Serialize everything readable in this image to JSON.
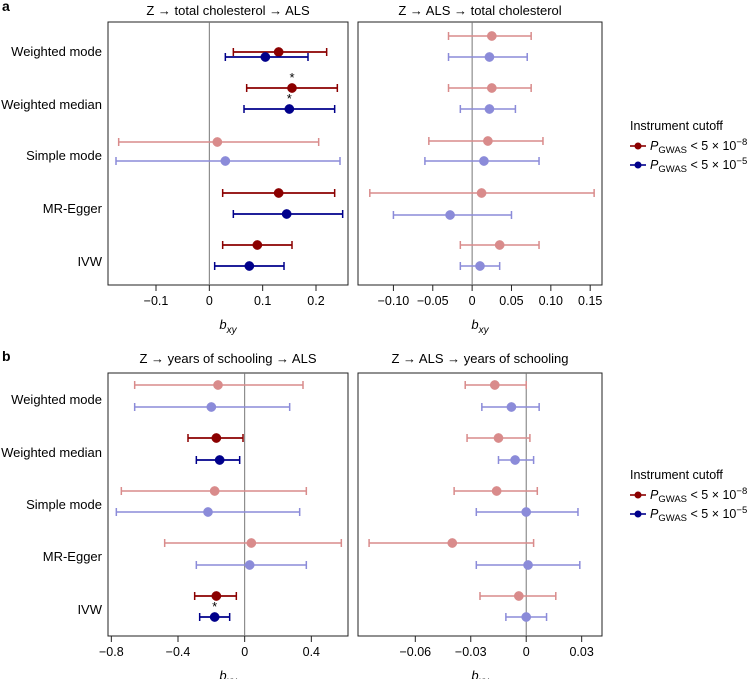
{
  "panel_labels": [
    "a",
    "b"
  ],
  "methods": [
    "Weighted mode",
    "Weighted median",
    "Simple mode",
    "MR-Egger",
    "IVW"
  ],
  "legend": {
    "title": "Instrument cutoff",
    "items": [
      {
        "label": "P_GWAS < 5 × 10^-8",
        "color": "#8b0000"
      },
      {
        "label": "P_GWAS < 5 × 10^-5",
        "color": "#00008b"
      }
    ]
  },
  "colors": {
    "red": "#8b0000",
    "blue": "#00008b",
    "red_faded": "#d98b8b",
    "blue_faded": "#8b8bd9"
  },
  "chart_data": [
    {
      "type": "forest",
      "panel": "a",
      "title": "Z → total cholesterol → ALS",
      "xlabel": "b_xy",
      "xlim": [
        -0.19,
        0.26
      ],
      "xticks": [
        -0.1,
        0,
        0.1,
        0.2
      ],
      "xtick_labels": [
        "−0.1",
        "0",
        "0.1",
        "0.2"
      ],
      "series": [
        {
          "name": "P_GWAS < 5 × 10^-8",
          "estimates": [
            0.13,
            0.155,
            0.015,
            0.13,
            0.09
          ],
          "ci_low": [
            0.045,
            0.07,
            -0.17,
            0.025,
            0.025
          ],
          "ci_high": [
            0.22,
            0.24,
            0.205,
            0.235,
            0.155
          ],
          "significant": [
            true,
            true,
            false,
            true,
            true
          ],
          "star": [
            false,
            true,
            false,
            false,
            false
          ]
        },
        {
          "name": "P_GWAS < 5 × 10^-5",
          "estimates": [
            0.105,
            0.15,
            0.03,
            0.145,
            0.075
          ],
          "ci_low": [
            0.03,
            0.065,
            -0.175,
            0.045,
            0.01
          ],
          "ci_high": [
            0.185,
            0.235,
            0.245,
            0.25,
            0.14
          ],
          "significant": [
            true,
            true,
            false,
            true,
            true
          ],
          "star": [
            false,
            true,
            false,
            false,
            false
          ]
        }
      ]
    },
    {
      "type": "forest",
      "panel": "a",
      "title": "Z → ALS → total cholesterol",
      "xlabel": "b_xy",
      "xlim": [
        -0.145,
        0.165
      ],
      "xticks": [
        -0.1,
        -0.05,
        0,
        0.05,
        0.1,
        0.15
      ],
      "xtick_labels": [
        "−0.10",
        "−0.05",
        "0",
        "0.05",
        "0.10",
        "0.15"
      ],
      "series": [
        {
          "name": "P_GWAS < 5 × 10^-8",
          "estimates": [
            0.025,
            0.025,
            0.02,
            0.012,
            0.035
          ],
          "ci_low": [
            -0.03,
            -0.03,
            -0.055,
            -0.13,
            -0.015
          ],
          "ci_high": [
            0.075,
            0.075,
            0.09,
            0.155,
            0.085
          ],
          "significant": [
            false,
            false,
            false,
            false,
            false
          ],
          "star": [
            false,
            false,
            false,
            false,
            false
          ]
        },
        {
          "name": "P_GWAS < 5 × 10^-5",
          "estimates": [
            0.022,
            0.022,
            0.015,
            -0.028,
            0.01
          ],
          "ci_low": [
            -0.03,
            -0.015,
            -0.06,
            -0.1,
            -0.015
          ],
          "ci_high": [
            0.07,
            0.055,
            0.085,
            0.05,
            0.035
          ],
          "significant": [
            false,
            false,
            false,
            false,
            false
          ],
          "star": [
            false,
            false,
            false,
            false,
            false
          ]
        }
      ]
    },
    {
      "type": "forest",
      "panel": "b",
      "title": "Z → years of schooling → ALS",
      "xlabel": "b_xy",
      "xlim": [
        -0.82,
        0.62
      ],
      "xticks": [
        -0.8,
        -0.4,
        0,
        0.4
      ],
      "xtick_labels": [
        "−0.8",
        "−0.4",
        "0",
        "0.4"
      ],
      "series": [
        {
          "name": "P_GWAS < 5 × 10^-8",
          "estimates": [
            -0.16,
            -0.17,
            -0.18,
            0.04,
            -0.17
          ],
          "ci_low": [
            -0.66,
            -0.34,
            -0.74,
            -0.48,
            -0.3
          ],
          "ci_high": [
            0.35,
            -0.01,
            0.37,
            0.58,
            -0.05
          ],
          "significant": [
            false,
            true,
            false,
            false,
            true
          ],
          "star": [
            false,
            false,
            false,
            false,
            false
          ]
        },
        {
          "name": "P_GWAS < 5 × 10^-5",
          "estimates": [
            -0.2,
            -0.15,
            -0.22,
            0.03,
            -0.18
          ],
          "ci_low": [
            -0.66,
            -0.29,
            -0.77,
            -0.29,
            -0.27
          ],
          "ci_high": [
            0.27,
            -0.03,
            0.33,
            0.37,
            -0.09
          ],
          "significant": [
            false,
            true,
            false,
            false,
            true
          ],
          "star": [
            false,
            false,
            false,
            false,
            true
          ]
        }
      ]
    },
    {
      "type": "forest",
      "panel": "b",
      "title": "Z → ALS → years of schooling",
      "xlabel": "b_xy",
      "xlim": [
        -0.091,
        0.041
      ],
      "xticks": [
        -0.06,
        -0.03,
        0,
        0.03
      ],
      "xtick_labels": [
        "−0.06",
        "−0.03",
        "0",
        "0.03"
      ],
      "series": [
        {
          "name": "P_GWAS < 5 × 10^-8",
          "estimates": [
            -0.017,
            -0.015,
            -0.016,
            -0.04,
            -0.004
          ],
          "ci_low": [
            -0.033,
            -0.032,
            -0.039,
            -0.085,
            -0.025
          ],
          "ci_high": [
            0.0,
            0.002,
            0.006,
            0.004,
            0.016
          ],
          "significant": [
            false,
            false,
            false,
            false,
            false
          ],
          "star": [
            false,
            false,
            false,
            false,
            false
          ]
        },
        {
          "name": "P_GWAS < 5 × 10^-5",
          "estimates": [
            -0.008,
            -0.006,
            0.0,
            0.001,
            0.0
          ],
          "ci_low": [
            -0.024,
            -0.015,
            -0.027,
            -0.027,
            -0.011
          ],
          "ci_high": [
            0.007,
            0.004,
            0.028,
            0.029,
            0.011
          ],
          "significant": [
            false,
            false,
            false,
            false,
            false
          ],
          "star": [
            false,
            false,
            false,
            false,
            false
          ]
        }
      ]
    }
  ]
}
